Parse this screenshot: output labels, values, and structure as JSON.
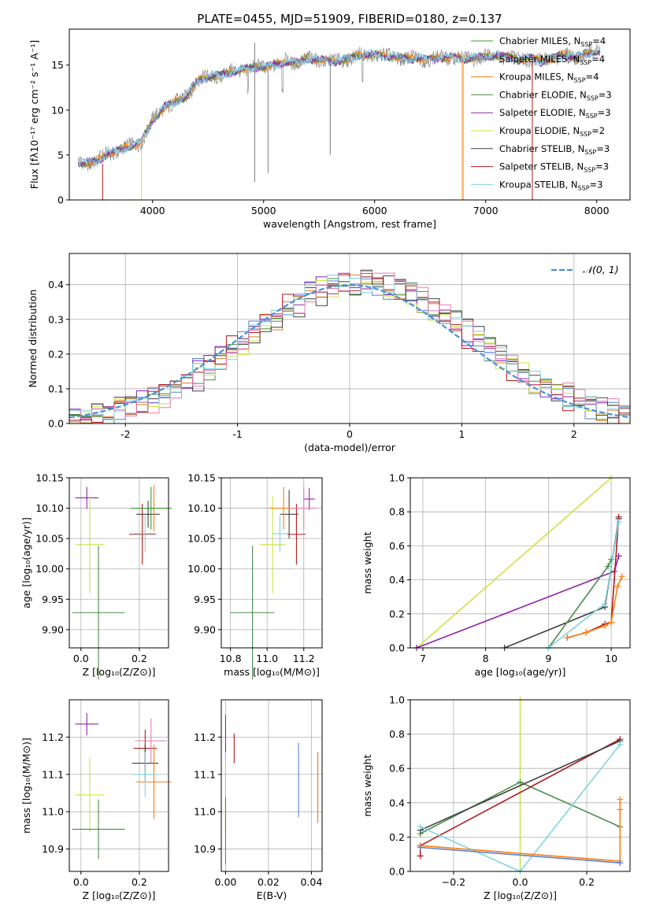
{
  "figure_title": "PLATE=0455, MJD=51909, FIBERID=0180, z=0.137",
  "colors": {
    "chabrier_miles": "#2ca02c",
    "salpeter_miles": "#7f7f7f",
    "kroupa_miles": "#ff7f0e",
    "chabrier_elodie": "#4c8c4c",
    "salpeter_elodie": "#8e24aa",
    "kroupa_elodie": "#c8e640",
    "chabrier_stelib": "#404040",
    "salpeter_stelib": "#b11a1a",
    "kroupa_stelib": "#80d4e0",
    "gauss": "#4a90d9",
    "hist_blue": "#5b7fd6",
    "hist_orange": "#e07b2c",
    "hist_pink": "#e07fb0"
  },
  "chart_data": [
    {
      "id": "spectrum",
      "type": "line",
      "xlabel": "wavelength [Angstrom, rest frame]",
      "ylabel": "Flux [fλ10⁻¹⁷ erg cm⁻² s⁻¹ A⁻¹]",
      "xlim": [
        3250,
        8300
      ],
      "ylim": [
        0,
        19
      ],
      "xticks": [
        4000,
        5000,
        6000,
        7000,
        8000
      ],
      "yticks": [
        0,
        5,
        10,
        15
      ],
      "legend_position": "top-right",
      "legend": [
        {
          "text": "Chabrier MILES, N",
          "sub": "SSP",
          "tail": "=4",
          "color": "chabrier_miles"
        },
        {
          "text": "Salpeter MILES, N",
          "sub": "SSP",
          "tail": "=4",
          "color": "salpeter_miles"
        },
        {
          "text": "Kroupa MILES, N",
          "sub": "SSP",
          "tail": "=4",
          "color": "kroupa_miles"
        },
        {
          "text": "Chabrier ELODIE, N",
          "sub": "SSP",
          "tail": "=3",
          "color": "chabrier_elodie"
        },
        {
          "text": "Salpeter ELODIE, N",
          "sub": "SSP",
          "tail": "=3",
          "color": "salpeter_elodie"
        },
        {
          "text": "Kroupa ELODIE, N",
          "sub": "SSP",
          "tail": "=2",
          "color": "kroupa_elodie"
        },
        {
          "text": "Chabrier STELIB, N",
          "sub": "SSP",
          "tail": "=3",
          "color": "chabrier_stelib"
        },
        {
          "text": "Salpeter STELIB, N",
          "sub": "SSP",
          "tail": "=3",
          "color": "salpeter_stelib"
        },
        {
          "text": "Kroupa STELIB, N",
          "sub": "SSP",
          "tail": "=3",
          "color": "kroupa_stelib"
        }
      ],
      "envelope": [
        [
          3330,
          4.2
        ],
        [
          3400,
          4.1
        ],
        [
          3500,
          4.3
        ],
        [
          3600,
          5.2
        ],
        [
          3700,
          5.5
        ],
        [
          3800,
          6.0
        ],
        [
          3900,
          6.5
        ],
        [
          4000,
          8.8
        ],
        [
          4100,
          10.3
        ],
        [
          4200,
          10.8
        ],
        [
          4300,
          11.5
        ],
        [
          4400,
          13.2
        ],
        [
          4500,
          13.7
        ],
        [
          4600,
          13.8
        ],
        [
          4700,
          14.2
        ],
        [
          4800,
          14.5
        ],
        [
          4900,
          14.7
        ],
        [
          5000,
          14.8
        ],
        [
          5100,
          15.0
        ],
        [
          5200,
          15.4
        ],
        [
          5300,
          15.3
        ],
        [
          5400,
          15.7
        ],
        [
          5500,
          15.6
        ],
        [
          5600,
          15.4
        ],
        [
          5700,
          15.5
        ],
        [
          5800,
          15.9
        ],
        [
          5900,
          16.1
        ],
        [
          6000,
          16.2
        ],
        [
          6100,
          16.0
        ],
        [
          6200,
          15.9
        ],
        [
          6300,
          15.7
        ],
        [
          6400,
          15.8
        ],
        [
          6500,
          15.6
        ],
        [
          6600,
          15.8
        ],
        [
          6700,
          15.9
        ],
        [
          6800,
          15.7
        ],
        [
          6900,
          15.8
        ],
        [
          7000,
          16.0
        ],
        [
          7100,
          16.1
        ],
        [
          7200,
          15.9
        ],
        [
          7300,
          15.6
        ],
        [
          7400,
          15.8
        ],
        [
          7500,
          15.4
        ],
        [
          7600,
          15.8
        ],
        [
          7700,
          16.1
        ],
        [
          7800,
          15.9
        ],
        [
          7900,
          16.2
        ],
        [
          8000,
          16.6
        ],
        [
          8030,
          16.7
        ]
      ]
    },
    {
      "id": "residuals",
      "type": "histogram",
      "xlabel": "(data-model)/error",
      "ylabel": "Normed distribution",
      "xlim": [
        -2.5,
        2.5
      ],
      "ylim": [
        0,
        0.49
      ],
      "xticks": [
        -2,
        -1,
        0,
        1,
        2
      ],
      "yticks": [
        0.0,
        0.1,
        0.2,
        0.3,
        0.4
      ],
      "grid": true,
      "legend_position": "top-right",
      "legend": [
        {
          "text": "𝒩(0, 1)",
          "color": "gauss",
          "style": "dashed"
        }
      ],
      "bin_width": 0.1
    },
    {
      "id": "age_vs_z",
      "type": "errorbar",
      "xlabel": "Z [log₁₀(Z/Z⊙)]",
      "ylabel": "age  [log₁₀(age/yr)]",
      "xlim": [
        -0.04,
        0.3
      ],
      "ylim": [
        9.87,
        10.15
      ],
      "xticks": [
        0.0,
        0.2
      ],
      "yticks": [
        9.9,
        9.95,
        10.0,
        10.05,
        10.1,
        10.15
      ],
      "grid": true,
      "points": [
        {
          "x": 0.02,
          "y": 10.117,
          "xerr": 0.04,
          "yerr": 0.018,
          "color": "salpeter_elodie"
        },
        {
          "x": 0.03,
          "y": 10.04,
          "xerr": 0.05,
          "yerr": 0.08,
          "color": "kroupa_elodie"
        },
        {
          "x": 0.06,
          "y": 9.928,
          "xerr": 0.09,
          "yerr": 0.11,
          "color": "chabrier_elodie"
        },
        {
          "x": 0.23,
          "y": 10.09,
          "xerr": 0.04,
          "yerr": 0.022,
          "color": "chabrier_stelib"
        },
        {
          "x": 0.21,
          "y": 10.057,
          "xerr": 0.045,
          "yerr": 0.05,
          "color": "salpeter_stelib"
        },
        {
          "x": 0.25,
          "y": 10.1,
          "xerr": 0.06,
          "yerr": 0.038,
          "color": "kroupa_miles"
        },
        {
          "x": 0.24,
          "y": 10.1,
          "xerr": 0.07,
          "yerr": 0.035,
          "color": "chabrier_miles"
        },
        {
          "x": 0.22,
          "y": 10.058,
          "xerr": 0.04,
          "yerr": 0.03,
          "color": "kroupa_stelib"
        }
      ]
    },
    {
      "id": "age_vs_mass",
      "type": "errorbar",
      "xlabel": "mass [log₁₀(M/M⊙)]",
      "xlim": [
        10.75,
        11.3
      ],
      "ylim": [
        9.87,
        10.15
      ],
      "xticks": [
        10.8,
        11.0,
        11.2
      ],
      "yticks": [
        9.9,
        9.95,
        10.0,
        10.05,
        10.1,
        10.15
      ],
      "grid": true,
      "points": [
        {
          "x": 11.23,
          "y": 10.115,
          "xerr": 0.03,
          "yerr": 0.018,
          "color": "salpeter_elodie"
        },
        {
          "x": 11.03,
          "y": 10.04,
          "xerr": 0.07,
          "yerr": 0.08,
          "color": "kroupa_elodie"
        },
        {
          "x": 10.92,
          "y": 9.928,
          "xerr": 0.12,
          "yerr": 0.11,
          "color": "chabrier_elodie"
        },
        {
          "x": 11.12,
          "y": 10.09,
          "xerr": 0.05,
          "yerr": 0.04,
          "color": "chabrier_stelib"
        },
        {
          "x": 11.16,
          "y": 10.057,
          "xerr": 0.05,
          "yerr": 0.05,
          "color": "salpeter_stelib"
        },
        {
          "x": 11.09,
          "y": 10.1,
          "xerr": 0.08,
          "yerr": 0.035,
          "color": "kroupa_miles"
        },
        {
          "x": 11.2,
          "y": 10.1,
          "xerr": 0.07,
          "yerr": 0.035,
          "color": "hist_pink"
        },
        {
          "x": 11.07,
          "y": 10.058,
          "xerr": 0.04,
          "yerr": 0.03,
          "color": "kroupa_stelib"
        }
      ]
    },
    {
      "id": "mass_weight_vs_age",
      "type": "line",
      "xlabel": "age  [log₁₀(age/yr)]",
      "ylabel": "mass weight",
      "xlim": [
        6.8,
        10.3
      ],
      "ylim": [
        0,
        1
      ],
      "xticks": [
        7,
        8,
        9,
        10
      ],
      "yticks": [
        0.0,
        0.2,
        0.4,
        0.6,
        0.8,
        1.0
      ],
      "grid": true,
      "series": [
        {
          "color": "kroupa_elodie",
          "x": [
            6.9,
            10.0
          ],
          "y": [
            0.0,
            1.0
          ]
        },
        {
          "color": "salpeter_elodie",
          "x": [
            6.9,
            10.05,
            10.12
          ],
          "y": [
            0.0,
            0.45,
            0.54
          ]
        },
        {
          "color": "chabrier_stelib",
          "x": [
            8.3,
            9.9,
            10.12
          ],
          "y": [
            0.0,
            0.24,
            0.76
          ]
        },
        {
          "color": "chabrier_elodie",
          "x": [
            9.0,
            9.95,
            10.0
          ],
          "y": [
            0.0,
            0.48,
            0.52
          ]
        },
        {
          "color": "salpeter_stelib",
          "x": [
            9.3,
            9.6,
            9.9,
            10.0,
            10.12
          ],
          "y": [
            0.06,
            0.09,
            0.14,
            0.15,
            0.77
          ]
        },
        {
          "color": "kroupa_stelib",
          "x": [
            9.0,
            9.9,
            10.12
          ],
          "y": [
            0.0,
            0.26,
            0.74
          ]
        },
        {
          "color": "kroupa_miles",
          "x": [
            9.3,
            9.6,
            9.9,
            10.0,
            10.1,
            10.17
          ],
          "y": [
            0.06,
            0.09,
            0.13,
            0.15,
            0.36,
            0.42
          ]
        }
      ]
    },
    {
      "id": "mass_vs_z",
      "type": "errorbar",
      "xlabel": "Z [log₁₀(Z/Z⊙)]",
      "ylabel": "mass [log₁₀(M/M⊙)]",
      "xlim": [
        -0.04,
        0.3
      ],
      "ylim": [
        10.84,
        11.3
      ],
      "xticks": [
        0.0,
        0.2
      ],
      "yticks": [
        10.9,
        11.0,
        11.1,
        11.2
      ],
      "grid": true,
      "points": [
        {
          "x": 0.02,
          "y": 11.235,
          "xerr": 0.04,
          "yerr": 0.03,
          "color": "salpeter_elodie"
        },
        {
          "x": 0.03,
          "y": 11.045,
          "xerr": 0.05,
          "yerr": 0.1,
          "color": "kroupa_elodie"
        },
        {
          "x": 0.06,
          "y": 10.953,
          "xerr": 0.09,
          "yerr": 0.08,
          "color": "chabrier_elodie"
        },
        {
          "x": 0.22,
          "y": 11.17,
          "xerr": 0.04,
          "yerr": 0.05,
          "color": "salpeter_stelib"
        },
        {
          "x": 0.22,
          "y": 11.13,
          "xerr": 0.045,
          "yerr": 0.05,
          "color": "chabrier_stelib"
        },
        {
          "x": 0.24,
          "y": 11.19,
          "xerr": 0.055,
          "yerr": 0.06,
          "color": "hist_pink"
        },
        {
          "x": 0.25,
          "y": 11.08,
          "xerr": 0.06,
          "yerr": 0.1,
          "color": "kroupa_miles"
        },
        {
          "x": 0.22,
          "y": 11.1,
          "xerr": 0.04,
          "yerr": 0.06,
          "color": "kroupa_stelib"
        }
      ]
    },
    {
      "id": "mass_vs_ebv",
      "type": "errorbar",
      "xlabel": "E(B-V)",
      "xlim": [
        -0.002,
        0.045
      ],
      "ylim": [
        10.84,
        11.3
      ],
      "xticks": [
        0.0,
        0.02,
        0.04
      ],
      "yticks": [
        10.9,
        11.0,
        11.1,
        11.2
      ],
      "grid": true,
      "points": [
        {
          "x": 0.0,
          "y": 11.2,
          "xerr": 0.0,
          "yerr": 0.06,
          "color": "salpeter_elodie"
        },
        {
          "x": 0.0,
          "y": 11.04,
          "xerr": 0.0,
          "yerr": 0.1,
          "color": "kroupa_elodie"
        },
        {
          "x": 0.0,
          "y": 10.95,
          "xerr": 0.0,
          "yerr": 0.09,
          "color": "chabrier_elodie"
        },
        {
          "x": 0.0,
          "y": 11.1,
          "xerr": 0.0,
          "yerr": 0.06,
          "color": "kroupa_stelib"
        },
        {
          "x": 0.004,
          "y": 11.17,
          "xerr": 0.0,
          "yerr": 0.04,
          "color": "salpeter_stelib"
        },
        {
          "x": 0.034,
          "y": 11.085,
          "xerr": 0.0,
          "yerr": 0.1,
          "color": "hist_blue"
        },
        {
          "x": 0.043,
          "y": 11.065,
          "xerr": 0.0,
          "yerr": 0.095,
          "color": "hist_orange"
        }
      ]
    },
    {
      "id": "mass_weight_vs_z",
      "type": "line",
      "xlabel": "Z [log₁₀(Z/Z⊙)]",
      "ylabel": "mass weight",
      "xlim": [
        -0.33,
        0.33
      ],
      "ylim": [
        0,
        1
      ],
      "xticks": [
        -0.2,
        0.0,
        0.2
      ],
      "yticks": [
        0.0,
        0.2,
        0.4,
        0.6,
        0.8,
        1.0
      ],
      "grid": true,
      "series": [
        {
          "color": "kroupa_elodie",
          "x": [
            0.0,
            0.0
          ],
          "y": [
            0.0,
            1.0
          ]
        },
        {
          "color": "chabrier_elodie",
          "x": [
            -0.3,
            0.0,
            0.3
          ],
          "y": [
            0.22,
            0.52,
            0.26
          ]
        },
        {
          "color": "salpeter_stelib",
          "x": [
            -0.3,
            -0.3,
            0.3
          ],
          "y": [
            0.09,
            0.15,
            0.77
          ]
        },
        {
          "color": "chabrier_stelib",
          "x": [
            -0.3,
            0.3
          ],
          "y": [
            0.24,
            0.76
          ]
        },
        {
          "color": "kroupa_stelib",
          "x": [
            -0.3,
            0.0,
            0.3
          ],
          "y": [
            0.26,
            0.0,
            0.74
          ]
        },
        {
          "color": "kroupa_miles",
          "x": [
            -0.3,
            0.3,
            0.3,
            0.3
          ],
          "y": [
            0.15,
            0.06,
            0.36,
            0.42
          ]
        },
        {
          "color": "hist_blue",
          "x": [
            -0.3,
            0.3
          ],
          "y": [
            0.14,
            0.05
          ]
        }
      ]
    }
  ]
}
